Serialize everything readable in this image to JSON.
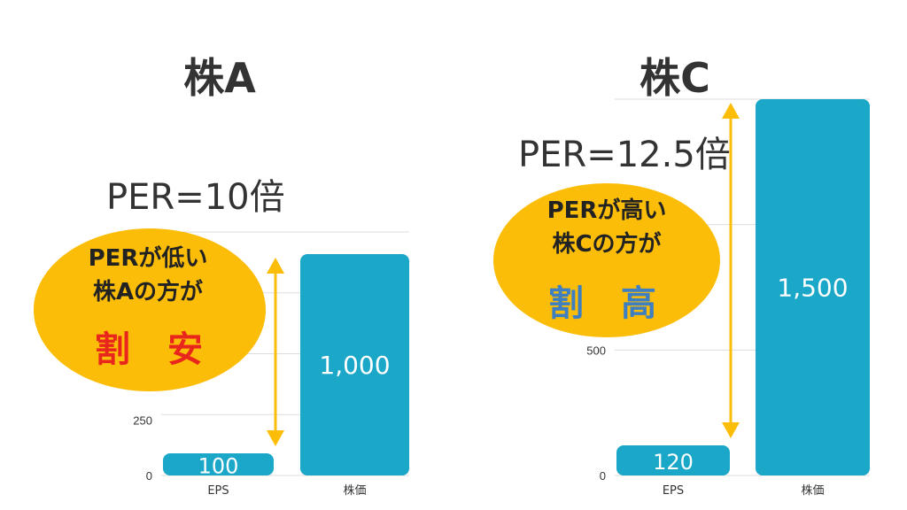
{
  "colors": {
    "bar": "#1aa7c8",
    "grid": "#dddddd",
    "arrow": "#fbbd08",
    "bubble": "#fbbd08",
    "cheap": "#e8261c",
    "expensive": "#3e7fc1"
  },
  "chart_data": [
    {
      "type": "bar",
      "title": "株A",
      "categories": [
        "EPS",
        "株価"
      ],
      "values": [
        100,
        1000
      ],
      "value_labels": [
        "100",
        "1,000"
      ],
      "ylim": [
        0,
        1100
      ],
      "yticks": [
        0,
        250
      ],
      "grid": true,
      "annotations": {
        "per": "PER=10倍",
        "bubble_lines": [
          "PERが低い",
          "株Aの方が"
        ],
        "verdict": "割 安"
      }
    },
    {
      "type": "bar",
      "title": "株C",
      "categories": [
        "EPS",
        "株価"
      ],
      "values": [
        120,
        1500
      ],
      "value_labels": [
        "120",
        "1,500"
      ],
      "ylim": [
        0,
        1500
      ],
      "yticks": [
        0,
        500
      ],
      "grid": true,
      "annotations": {
        "per": "PER=12.5倍",
        "bubble_lines": [
          "PERが高い",
          "株Cの方が"
        ],
        "verdict": "割 高"
      }
    }
  ]
}
